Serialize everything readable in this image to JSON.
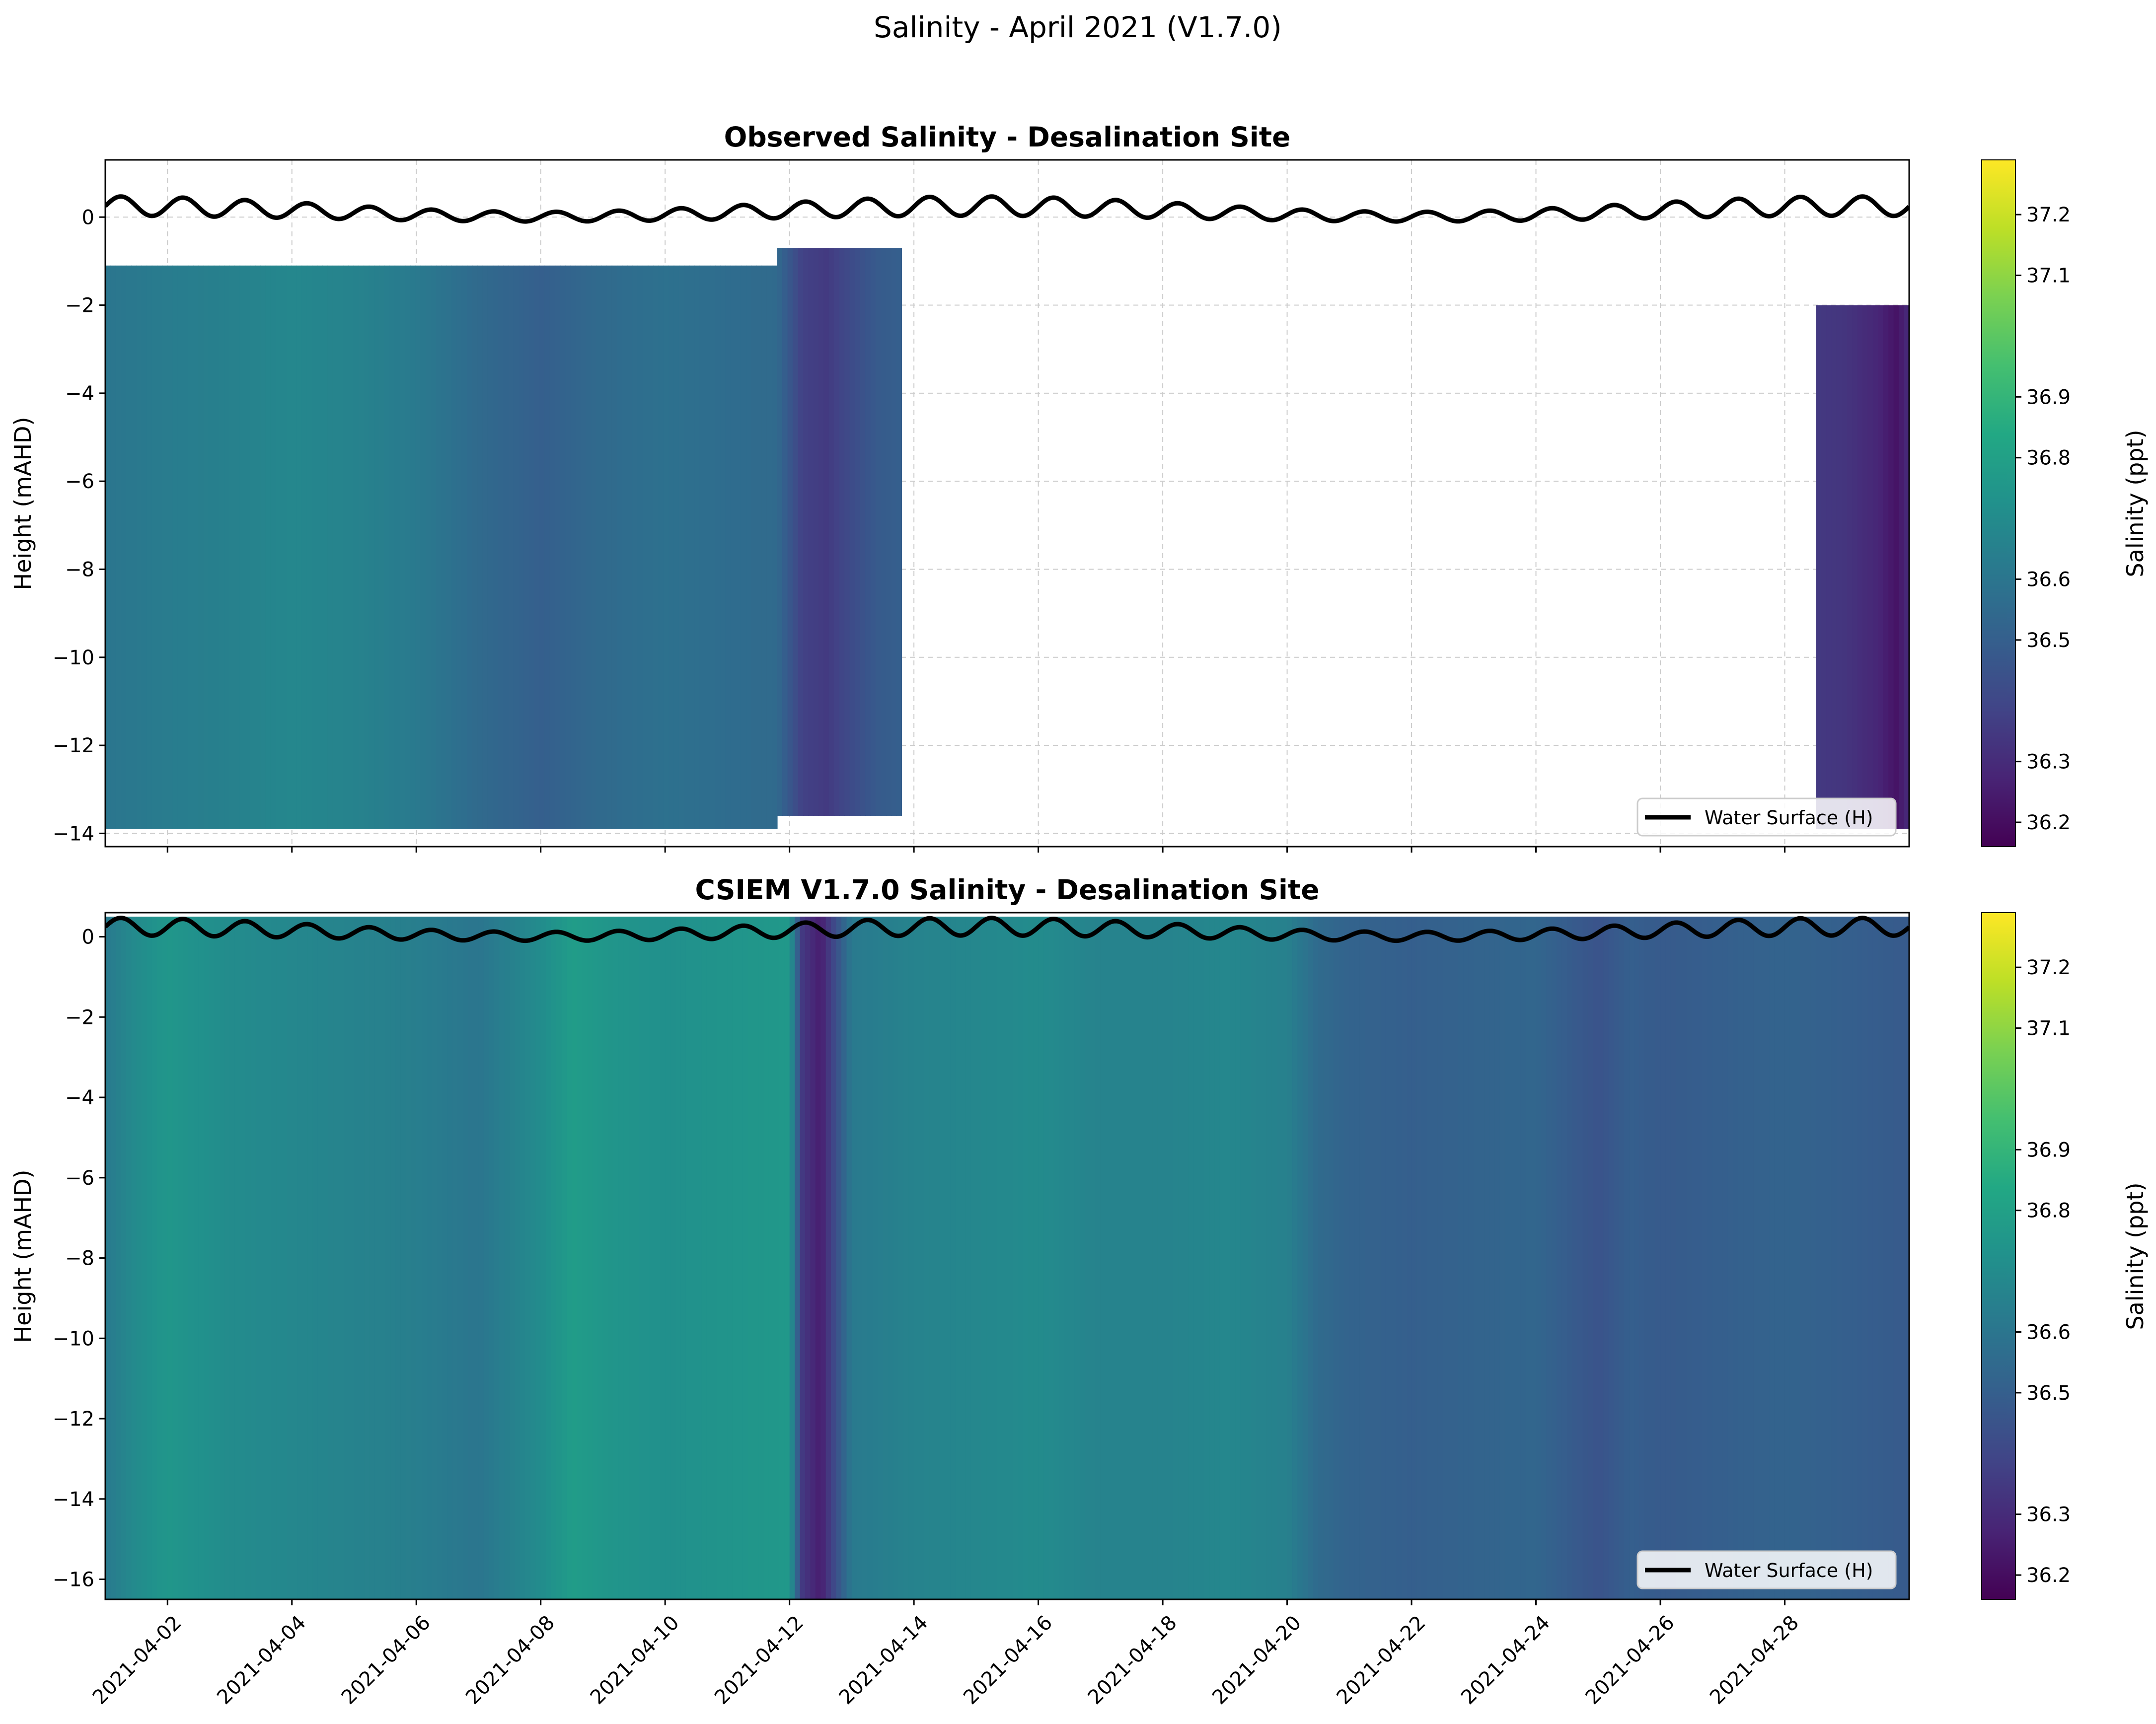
{
  "figure": {
    "suptitle": "Salinity - April 2021 (V1.7.0)"
  },
  "colors": {
    "water_line": "#000000",
    "grid": "#cccccc",
    "frame": "#000000"
  },
  "chart_data": [
    {
      "type": "heatmap",
      "id": "observed",
      "title": "Observed Salinity - Desalination Site",
      "ylabel": "Height (mAHD)",
      "ylim": [
        -14.3,
        1.3
      ],
      "yticks": [
        -14,
        -12,
        -10,
        -8,
        -6,
        -4,
        -2,
        0
      ],
      "xlim": [
        0.0,
        29.0
      ],
      "grid": true,
      "legend": {
        "label": "Water Surface (H)",
        "placement": "lower-right"
      },
      "colorbar": {
        "label": "Salinity (ppt)",
        "vmin": 36.16,
        "vmax": 37.29,
        "ticks": [
          36.2,
          36.3,
          36.5,
          36.6,
          36.8,
          36.9,
          37.1,
          37.2
        ]
      },
      "data_segments": [
        {
          "day_start": 0.0,
          "day_end": 10.8,
          "top": -1.1,
          "bottom": -13.9
        },
        {
          "day_start": 10.8,
          "day_end": 12.8,
          "top": -0.7,
          "bottom": -13.6
        },
        {
          "day_start": 27.5,
          "day_end": 29.0,
          "top": -2.0,
          "bottom": -13.9
        }
      ],
      "salinity_profile": {
        "days": [
          0.0,
          1.0,
          2.0,
          3.0,
          4.0,
          5.0,
          6.0,
          7.0,
          8.0,
          9.0,
          10.0,
          10.8,
          11.2,
          11.6,
          12.0,
          12.4,
          12.8,
          27.5,
          28.0,
          28.5,
          28.8,
          29.0
        ],
        "salinity": [
          36.6,
          36.63,
          36.65,
          36.68,
          36.66,
          36.62,
          36.55,
          36.5,
          36.55,
          36.58,
          36.56,
          36.55,
          36.38,
          36.35,
          36.42,
          36.48,
          36.5,
          36.35,
          36.33,
          36.28,
          36.22,
          36.3
        ]
      }
    },
    {
      "type": "heatmap",
      "id": "model",
      "title": "CSIEM V1.7.0 Salinity - Desalination Site",
      "ylabel": "Height (mAHD)",
      "ylim": [
        -16.5,
        0.6
      ],
      "yticks": [
        -16,
        -14,
        -12,
        -10,
        -8,
        -6,
        -4,
        -2,
        0
      ],
      "xlim": [
        0.0,
        29.0
      ],
      "grid": false,
      "legend": {
        "label": "Water Surface (H)",
        "placement": "lower-right"
      },
      "colorbar": {
        "label": "Salinity (ppt)",
        "vmin": 36.16,
        "vmax": 37.29,
        "ticks": [
          36.2,
          36.3,
          36.5,
          36.6,
          36.8,
          36.9,
          37.1,
          37.2
        ]
      },
      "data_segments": [
        {
          "day_start": 0.0,
          "day_end": 29.0,
          "top": 0.5,
          "bottom": -16.5
        }
      ],
      "salinity_profile": {
        "days": [
          0.0,
          0.5,
          1.0,
          2.0,
          3.0,
          4.0,
          5.0,
          6.0,
          7.0,
          7.5,
          8.0,
          9.0,
          10.0,
          11.0,
          11.2,
          11.5,
          12.0,
          13.0,
          14.0,
          15.0,
          16.0,
          17.0,
          18.0,
          19.0,
          19.5,
          20.0,
          21.0,
          22.0,
          23.0,
          24.0,
          24.5,
          25.0,
          26.0,
          27.0,
          28.0,
          29.0
        ],
        "salinity": [
          36.62,
          36.7,
          36.75,
          36.7,
          36.68,
          36.66,
          36.64,
          36.6,
          36.7,
          36.78,
          36.75,
          36.72,
          36.74,
          36.76,
          36.35,
          36.25,
          36.62,
          36.66,
          36.68,
          36.7,
          36.66,
          36.66,
          36.68,
          36.65,
          36.55,
          36.52,
          36.5,
          36.52,
          36.53,
          36.45,
          36.5,
          36.48,
          36.5,
          36.52,
          36.5,
          36.48
        ]
      }
    }
  ],
  "water_surface": {
    "name": "Water Surface (H)",
    "mean": 0.13,
    "semidiurnal_amplitude": 0.22,
    "spring_neap_amplitude": 0.12,
    "period_days": 1.0,
    "spring_neap_period_days": 14.0
  },
  "x_axis": {
    "tick_days": [
      1,
      3,
      5,
      7,
      9,
      11,
      13,
      15,
      17,
      19,
      21,
      23,
      25,
      27
    ],
    "tick_labels": [
      "2021-04-02",
      "2021-04-04",
      "2021-04-06",
      "2021-04-08",
      "2021-04-10",
      "2021-04-12",
      "2021-04-14",
      "2021-04-16",
      "2021-04-18",
      "2021-04-20",
      "2021-04-22",
      "2021-04-24",
      "2021-04-26",
      "2021-04-28"
    ]
  }
}
